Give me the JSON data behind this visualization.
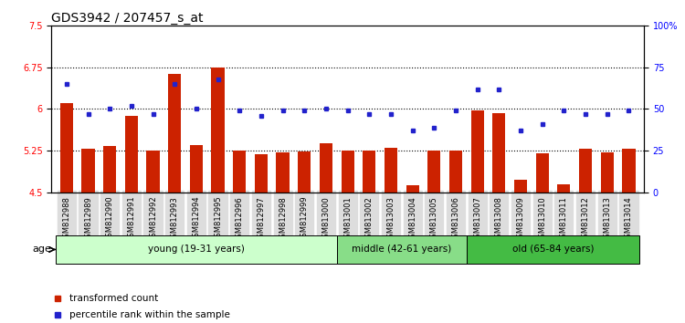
{
  "title": "GDS3942 / 207457_s_at",
  "samples": [
    "GSM812988",
    "GSM812989",
    "GSM812990",
    "GSM812991",
    "GSM812992",
    "GSM812993",
    "GSM812994",
    "GSM812995",
    "GSM812996",
    "GSM812997",
    "GSM812998",
    "GSM812999",
    "GSM813000",
    "GSM813001",
    "GSM813002",
    "GSM813003",
    "GSM813004",
    "GSM813005",
    "GSM813006",
    "GSM813007",
    "GSM813008",
    "GSM813009",
    "GSM813010",
    "GSM813011",
    "GSM813012",
    "GSM813013",
    "GSM813014"
  ],
  "bar_values": [
    6.1,
    5.28,
    5.33,
    5.88,
    5.25,
    6.63,
    5.35,
    6.75,
    5.25,
    5.18,
    5.22,
    5.23,
    5.38,
    5.25,
    5.25,
    5.3,
    4.62,
    5.25,
    5.25,
    5.97,
    5.93,
    4.72,
    5.2,
    4.65,
    5.28,
    5.22,
    5.28
  ],
  "percentile_values": [
    65,
    47,
    50,
    52,
    47,
    65,
    50,
    68,
    49,
    46,
    49,
    49,
    50,
    49,
    47,
    47,
    37,
    39,
    49,
    62,
    62,
    37,
    41,
    49,
    47,
    47,
    49
  ],
  "bar_bottom": 4.5,
  "ylim_left": [
    4.5,
    7.5
  ],
  "ylim_right": [
    0,
    100
  ],
  "yticks_left": [
    4.5,
    5.25,
    6.0,
    6.75,
    7.5
  ],
  "yticks_right": [
    0,
    25,
    50,
    75,
    100
  ],
  "ytick_labels_left": [
    "4.5",
    "5.25",
    "6",
    "6.75",
    "7.5"
  ],
  "ytick_labels_right": [
    "0",
    "25",
    "50",
    "75",
    "100%"
  ],
  "hlines": [
    5.25,
    6.0,
    6.75
  ],
  "bar_color": "#cc2200",
  "dot_color": "#2222cc",
  "groups": [
    {
      "label": "young (19-31 years)",
      "start": 0,
      "end": 13,
      "color": "#ccffcc"
    },
    {
      "label": "middle (42-61 years)",
      "start": 13,
      "end": 19,
      "color": "#88dd88"
    },
    {
      "label": "old (65-84 years)",
      "start": 19,
      "end": 27,
      "color": "#44bb44"
    }
  ],
  "age_label": "age",
  "legend_items": [
    {
      "color": "#cc2200",
      "label": "transformed count"
    },
    {
      "color": "#2222cc",
      "label": "percentile rank within the sample"
    }
  ],
  "title_fontsize": 10,
  "tick_fontsize": 7,
  "xtick_fontsize": 6,
  "group_fontsize": 7.5,
  "legend_fontsize": 7.5
}
